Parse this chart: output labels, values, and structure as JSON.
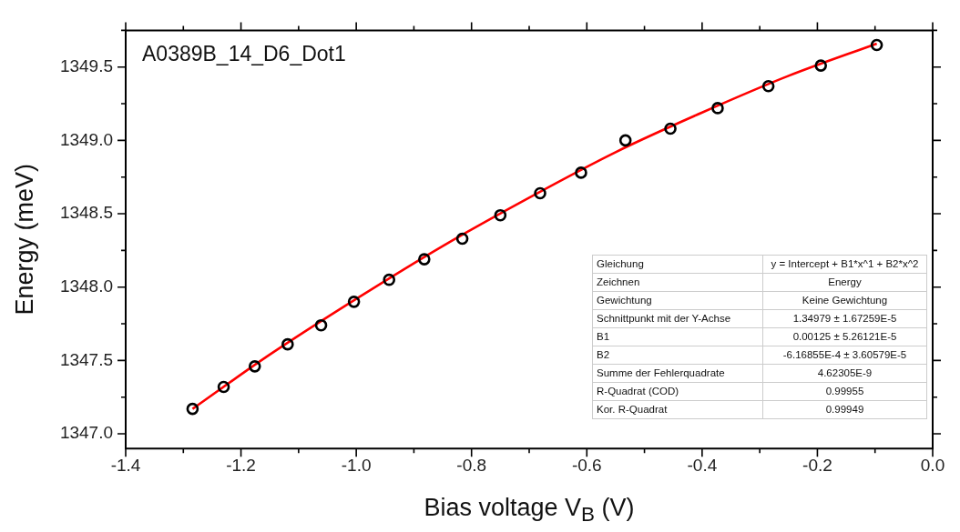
{
  "chart_data": {
    "type": "scatter",
    "title": "A0389B_14_D6_Dot1",
    "xlabel": "Bias voltage V$_{B}$ (V)",
    "ylabel": "Energy (meV)",
    "xlim": [
      -1.4,
      0.0
    ],
    "xticks": [
      -1.4,
      -1.2,
      {
        "value": -1.0,
        "label": "-1.0"
      },
      -0.8,
      -0.6,
      -0.4,
      -0.2,
      {
        "value": 0.0,
        "label": "0.0"
      }
    ],
    "ylim": [
      1346.9,
      1349.75
    ],
    "yticks": [
      {
        "value": 1347.0,
        "label": "1347.0"
      },
      1347.5,
      {
        "value": 1348.0,
        "label": "1348.0"
      },
      1348.5,
      {
        "value": 1349.0,
        "label": "1349.0"
      },
      1349.5
    ],
    "grid": false,
    "legend": false,
    "series": [
      {
        "type": "scatter",
        "color": "#000000",
        "marker": "circle",
        "x": [
          -1.284,
          -1.23,
          -1.176,
          -1.119,
          -1.061,
          -1.004,
          -0.943,
          -0.882,
          -0.816,
          -0.75,
          -0.681,
          -0.61,
          -0.533,
          -0.455,
          -0.373,
          -0.285,
          -0.194,
          -0.097
        ],
        "values": [
          1347.17,
          1347.32,
          1347.46,
          1347.61,
          1347.74,
          1347.9,
          1348.05,
          1348.19,
          1348.33,
          1348.49,
          1348.64,
          1348.78,
          1349.0,
          1349.08,
          1349.22,
          1349.37,
          1349.51,
          1349.65
        ]
      },
      {
        "type": "line",
        "color": "#ff0000",
        "marker": "none",
        "line_style": "solid",
        "x": [
          -1.284,
          -1.15,
          -1.0,
          -0.85,
          -0.7,
          -0.55,
          -0.4,
          -0.25,
          -0.097
        ],
        "values": [
          1347.17,
          1347.54,
          1347.92,
          1348.28,
          1348.61,
          1348.92,
          1349.19,
          1349.44,
          1349.66
        ]
      }
    ],
    "annotations": [
      "Gleichung",
      "y = Intercept + B1*x^1 + B2*x^2",
      "Zeichnen",
      "Energy",
      "Gewichtung",
      "Keine Gewichtung",
      "Schnittpunkt mit der Y-Achse",
      "1.34979 ± 1.67259E-5",
      "B1",
      "0.00125 ± 5.26121E-5",
      "B2",
      "-6.16855E-4 ± 3.60579E-5",
      "Summe der Fehlerquadrate",
      "4.62305E-9",
      "R-Quadrat (COD)",
      "0.99955",
      "Kor. R-Quadrat",
      "0.99949"
    ]
  }
}
